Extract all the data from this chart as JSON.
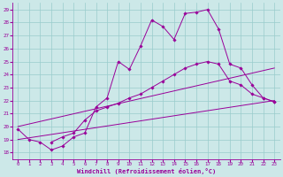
{
  "xlabel": "Windchill (Refroidissement éolien,°C)",
  "bg_color": "#cce8e8",
  "line_color": "#990099",
  "grid_color": "#99cccc",
  "xlim": [
    -0.5,
    23.5
  ],
  "ylim": [
    17.5,
    29.5
  ],
  "yticks": [
    18,
    19,
    20,
    21,
    22,
    23,
    24,
    25,
    26,
    27,
    28,
    29
  ],
  "xticks": [
    0,
    1,
    2,
    3,
    4,
    5,
    6,
    7,
    8,
    9,
    10,
    11,
    12,
    13,
    14,
    15,
    16,
    17,
    18,
    19,
    20,
    21,
    22,
    23
  ],
  "series": [
    {
      "x": [
        0,
        1,
        2,
        3,
        4,
        5,
        6,
        7,
        8,
        9,
        10,
        11,
        12,
        13,
        14,
        15,
        16,
        17,
        18,
        19,
        20,
        21,
        22,
        23
      ],
      "y": [
        19.8,
        19.0,
        18.8,
        18.2,
        18.5,
        19.2,
        19.5,
        21.5,
        22.2,
        25.0,
        24.4,
        26.2,
        28.2,
        27.7,
        26.7,
        28.7,
        28.8,
        29.0,
        27.5,
        24.8,
        24.5,
        23.2,
        22.2,
        21.9
      ],
      "has_markers": true
    },
    {
      "x": [
        3,
        4,
        5,
        6,
        7,
        8,
        9,
        10,
        11,
        12,
        13,
        14,
        15,
        16,
        17,
        18,
        19,
        20,
        21,
        22,
        23
      ],
      "y": [
        18.8,
        19.2,
        19.5,
        20.5,
        21.2,
        21.5,
        21.8,
        22.2,
        22.5,
        23.0,
        23.5,
        24.0,
        24.5,
        24.8,
        25.0,
        24.8,
        23.5,
        23.2,
        22.5,
        22.2,
        21.9
      ],
      "has_markers": true
    },
    {
      "comment": "diagonal line 1 - from ~0,20 to 23,24.5",
      "x": [
        0,
        23
      ],
      "y": [
        20.0,
        24.5
      ],
      "has_markers": false
    },
    {
      "x": [
        0,
        23
      ],
      "y": [
        19.0,
        22.0
      ],
      "has_markers": false
    }
  ]
}
